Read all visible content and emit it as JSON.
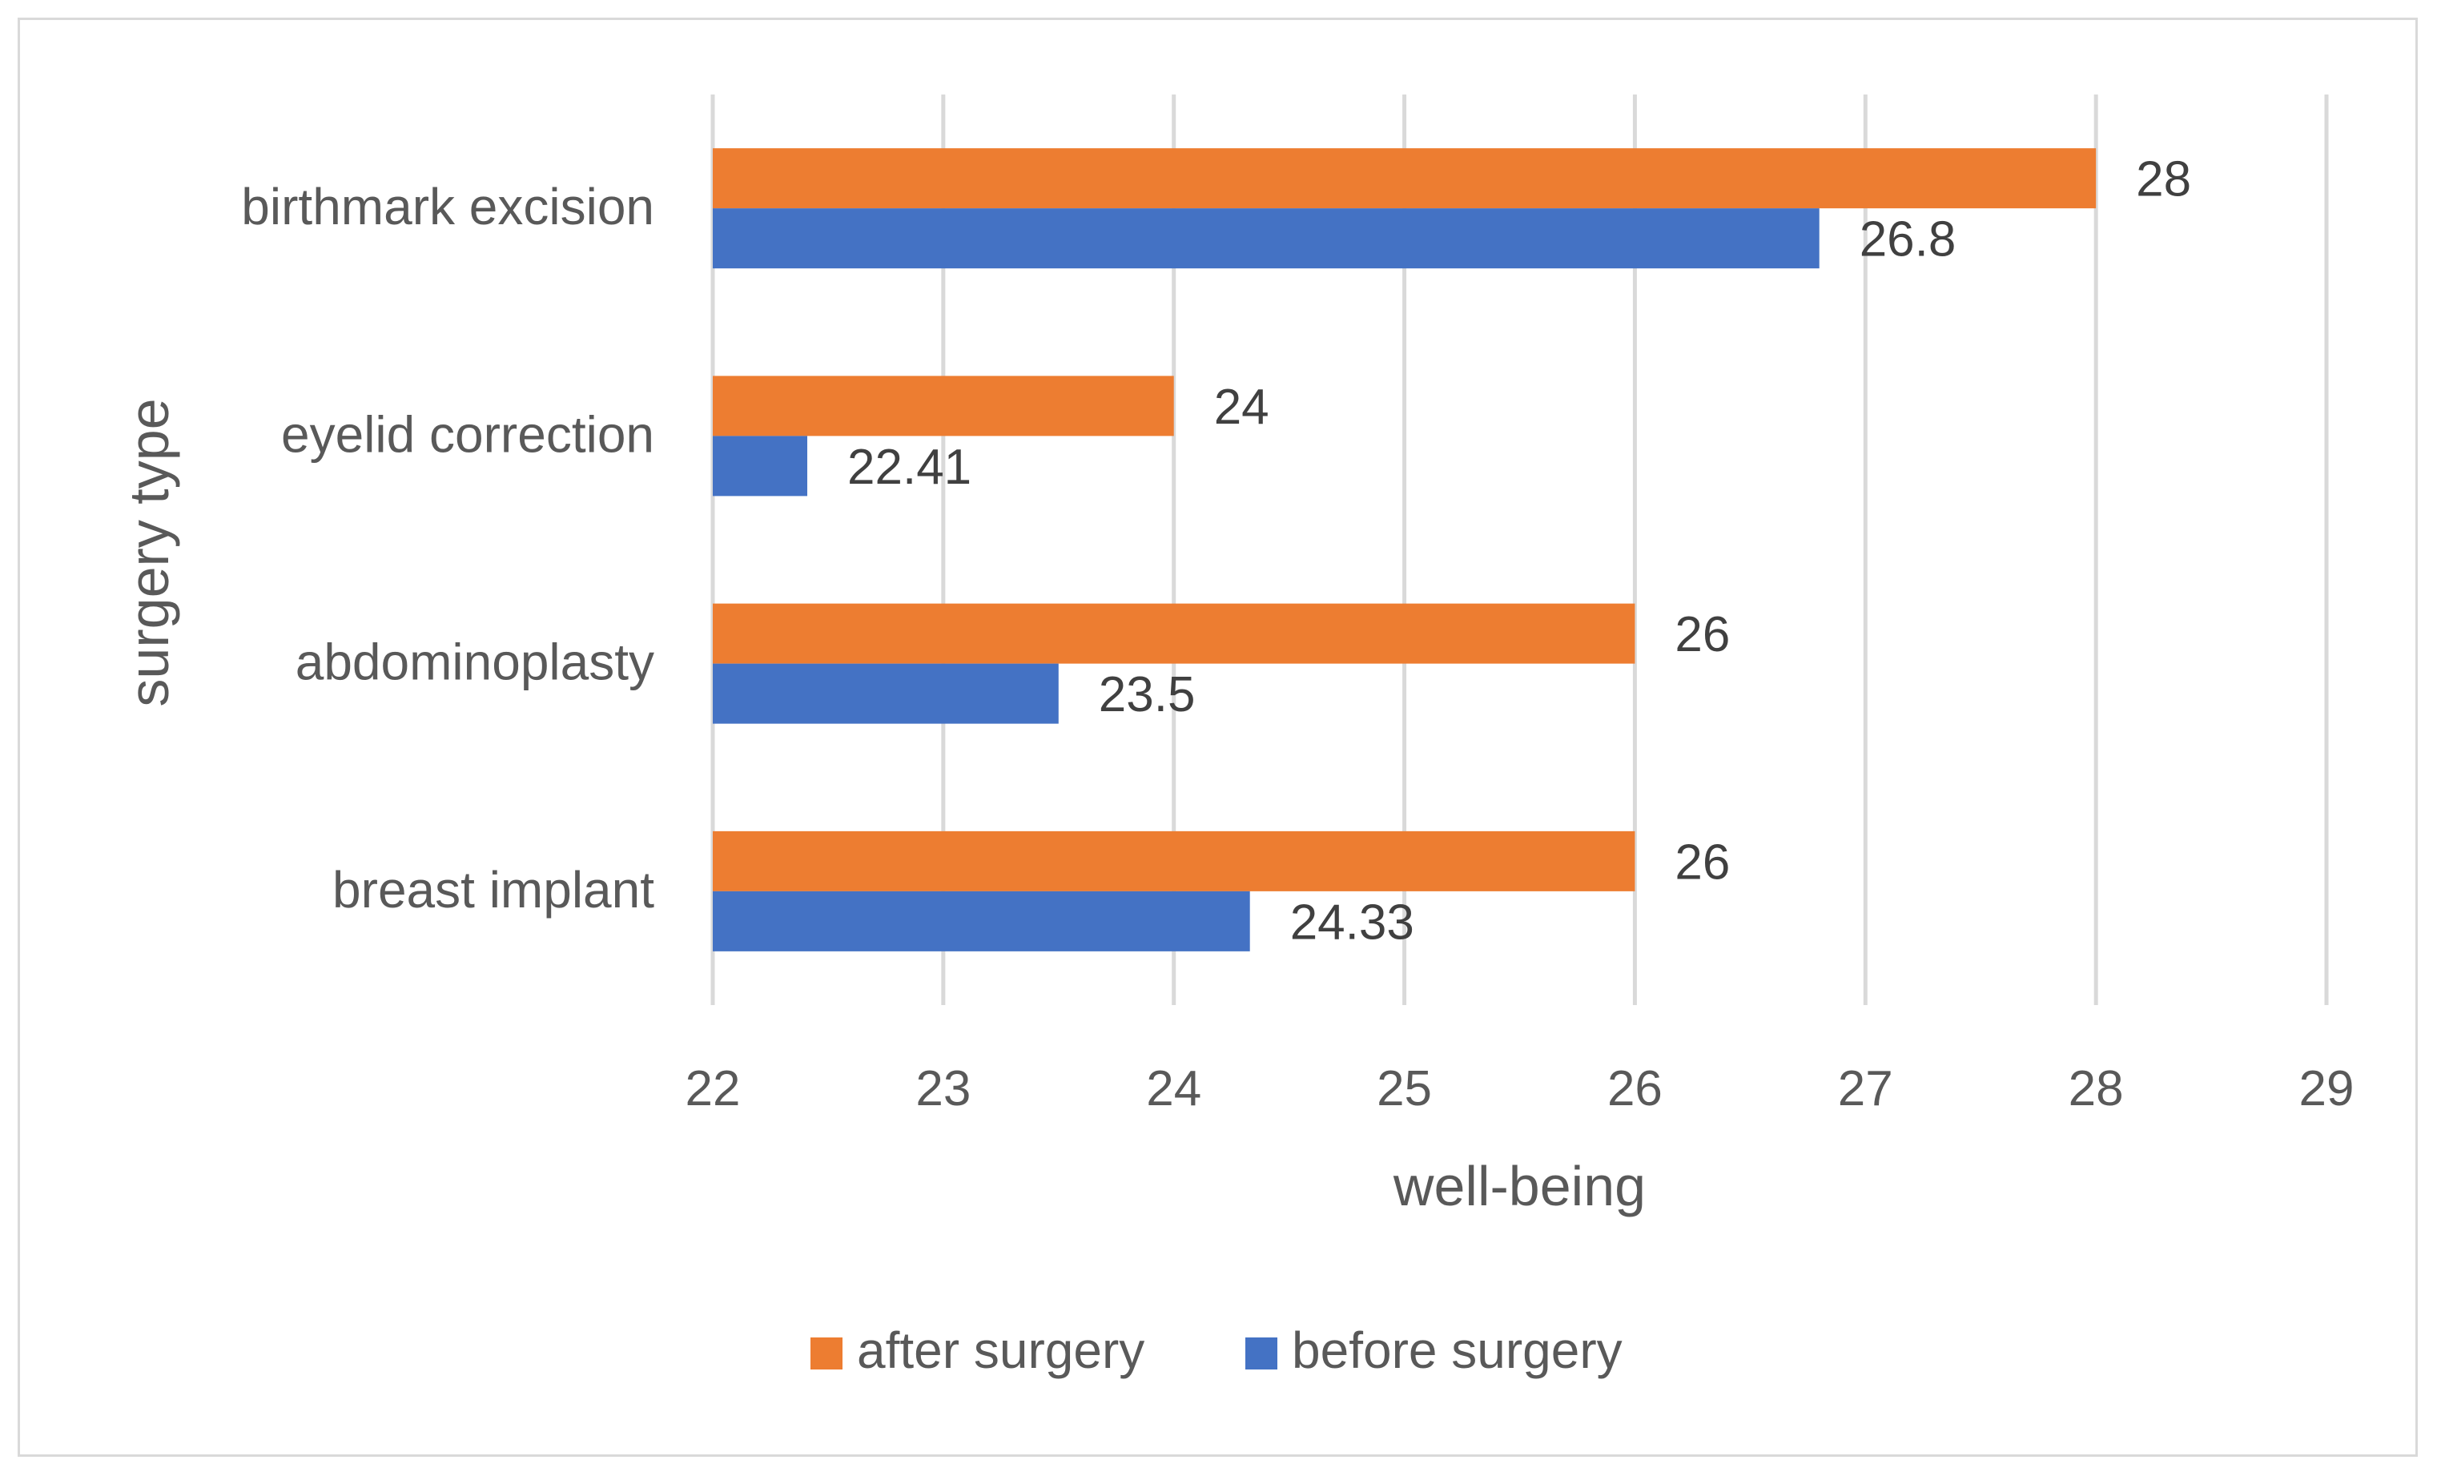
{
  "chart_data": {
    "type": "bar",
    "orientation": "horizontal",
    "title": "",
    "categories": [
      "birthmark excision",
      "eyelid correction",
      "abdominoplasty",
      "breast implant"
    ],
    "series": [
      {
        "name": "after surgery",
        "color": "#ED7D31",
        "values": [
          28,
          24,
          26,
          26
        ],
        "labels": [
          "28",
          "24",
          "26",
          "26"
        ]
      },
      {
        "name": "before surgery",
        "color": "#4472C4",
        "values": [
          26.8,
          22.41,
          23.5,
          24.33
        ],
        "labels": [
          "26.8",
          "22.41",
          "23.5",
          "24.33"
        ]
      }
    ],
    "xlabel": "well-being",
    "ylabel": "surgery type",
    "xlim": [
      22,
      29
    ],
    "xticks": [
      "22",
      "23",
      "24",
      "25",
      "26",
      "27",
      "28",
      "29"
    ],
    "grid": "vertical",
    "legend": "bottom",
    "gridline_color": "#D9D9D9"
  }
}
